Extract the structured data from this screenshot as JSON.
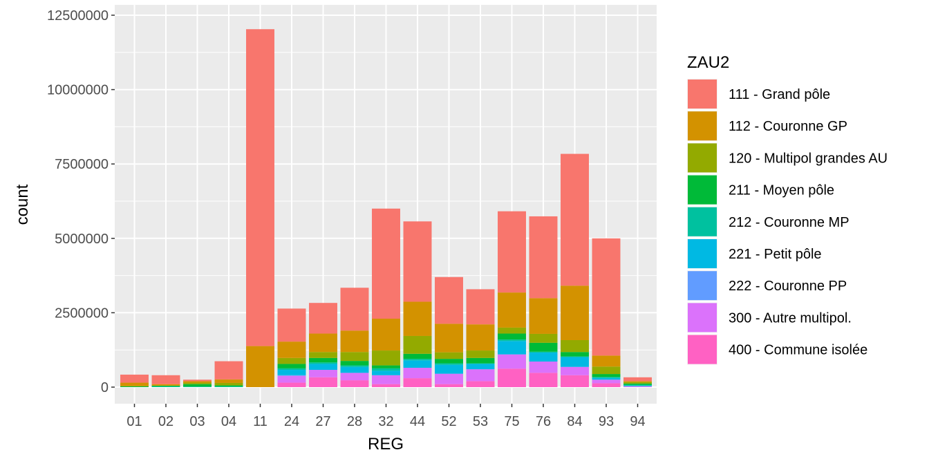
{
  "chart_data": {
    "type": "bar",
    "stacked": true,
    "xlabel": "REG",
    "ylabel": "count",
    "ylim": [
      0,
      12500000
    ],
    "yticks": [
      0,
      2500000,
      5000000,
      7500000,
      10000000,
      12500000
    ],
    "ytick_labels": [
      "0",
      "2500000",
      "5000000",
      "7500000",
      "10000000",
      "12500000"
    ],
    "grid": true,
    "legend_title": "ZAU2",
    "legend_position": "right",
    "categories": [
      "01",
      "02",
      "03",
      "04",
      "11",
      "24",
      "27",
      "28",
      "32",
      "44",
      "52",
      "53",
      "75",
      "76",
      "84",
      "93",
      "94"
    ],
    "series": [
      {
        "name": "400 - Commune isolée",
        "color": "#FF61C3",
        "values": [
          0,
          0,
          0,
          0,
          0,
          150000,
          330000,
          230000,
          100000,
          300000,
          100000,
          200000,
          620000,
          480000,
          400000,
          130000,
          0
        ]
      },
      {
        "name": "300 - Autre multipol.",
        "color": "#DB72FB",
        "values": [
          0,
          0,
          0,
          0,
          0,
          230000,
          250000,
          250000,
          300000,
          350000,
          350000,
          400000,
          480000,
          380000,
          280000,
          120000,
          30000
        ]
      },
      {
        "name": "222 - Couronne PP",
        "color": "#619CFF",
        "values": [
          0,
          0,
          0,
          0,
          0,
          20000,
          0,
          0,
          0,
          0,
          0,
          0,
          0,
          0,
          0,
          0,
          0
        ]
      },
      {
        "name": "221 - Petit pôle",
        "color": "#00B9E3",
        "values": [
          0,
          0,
          0,
          0,
          0,
          180000,
          200000,
          200000,
          150000,
          250000,
          300000,
          180000,
          450000,
          300000,
          330000,
          60000,
          20000
        ]
      },
      {
        "name": "212 - Couronne MP",
        "color": "#00C19F",
        "values": [
          0,
          20000,
          20000,
          20000,
          0,
          50000,
          50000,
          50000,
          80000,
          50000,
          50000,
          20000,
          50000,
          30000,
          20000,
          30000,
          30000
        ]
      },
      {
        "name": "211 - Moyen pôle",
        "color": "#00BA38",
        "values": [
          30000,
          30000,
          80000,
          40000,
          0,
          150000,
          150000,
          150000,
          100000,
          170000,
          150000,
          180000,
          200000,
          300000,
          150000,
          100000,
          40000
        ]
      },
      {
        "name": "120 - Multipol grandes AU",
        "color": "#93AA00",
        "values": [
          0,
          0,
          50000,
          80000,
          0,
          200000,
          200000,
          300000,
          500000,
          600000,
          220000,
          250000,
          200000,
          300000,
          400000,
          250000,
          50000
        ]
      },
      {
        "name": "112 - Couronne GP",
        "color": "#D39200",
        "values": [
          120000,
          50000,
          50000,
          120000,
          1380000,
          550000,
          620000,
          720000,
          1070000,
          1150000,
          960000,
          880000,
          1180000,
          1200000,
          1830000,
          370000,
          30000
        ]
      },
      {
        "name": "111 - Grand pôle",
        "color": "#F8766D",
        "values": [
          270000,
          300000,
          50000,
          610000,
          10650000,
          1110000,
          1030000,
          1440000,
          3700000,
          2700000,
          1570000,
          1180000,
          2730000,
          2750000,
          4430000,
          3940000,
          130000
        ]
      }
    ],
    "legend_order": [
      "111 - Grand pôle",
      "112 - Couronne GP",
      "120 - Multipol grandes AU",
      "211 - Moyen pôle",
      "212 - Couronne MP",
      "221 - Petit pôle",
      "222 - Couronne PP",
      "300 - Autre multipol.",
      "400 - Commune isolée"
    ]
  }
}
